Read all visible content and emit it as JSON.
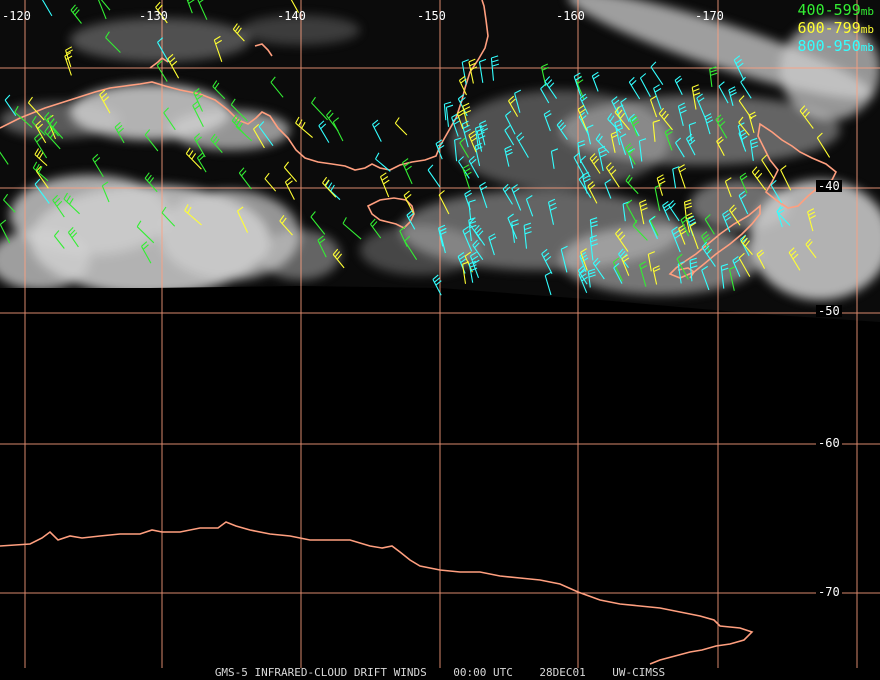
{
  "legend": {
    "unit": "mb",
    "levels": [
      {
        "range": "400-599",
        "color": "#33ee33"
      },
      {
        "range": "600-799",
        "color": "#ffff33"
      },
      {
        "range": "800-950",
        "color": "#33ffff"
      }
    ]
  },
  "caption": {
    "product": "GMS-5 INFRARED-CLOUD DRIFT WINDS",
    "time": "00:00 UTC",
    "date": "28DEC01",
    "source": "UW-CIMSS"
  },
  "grid": {
    "longitude_labels": [
      "-120",
      "-130",
      "-140",
      "-150",
      "-160",
      "-170"
    ],
    "latitude_labels": [
      "-40",
      "-50",
      "-60",
      "-70"
    ]
  },
  "colors": {
    "coastline": "#ff9f7f",
    "gridline": "#ffa07f",
    "cloud": "#cfcfcf"
  }
}
